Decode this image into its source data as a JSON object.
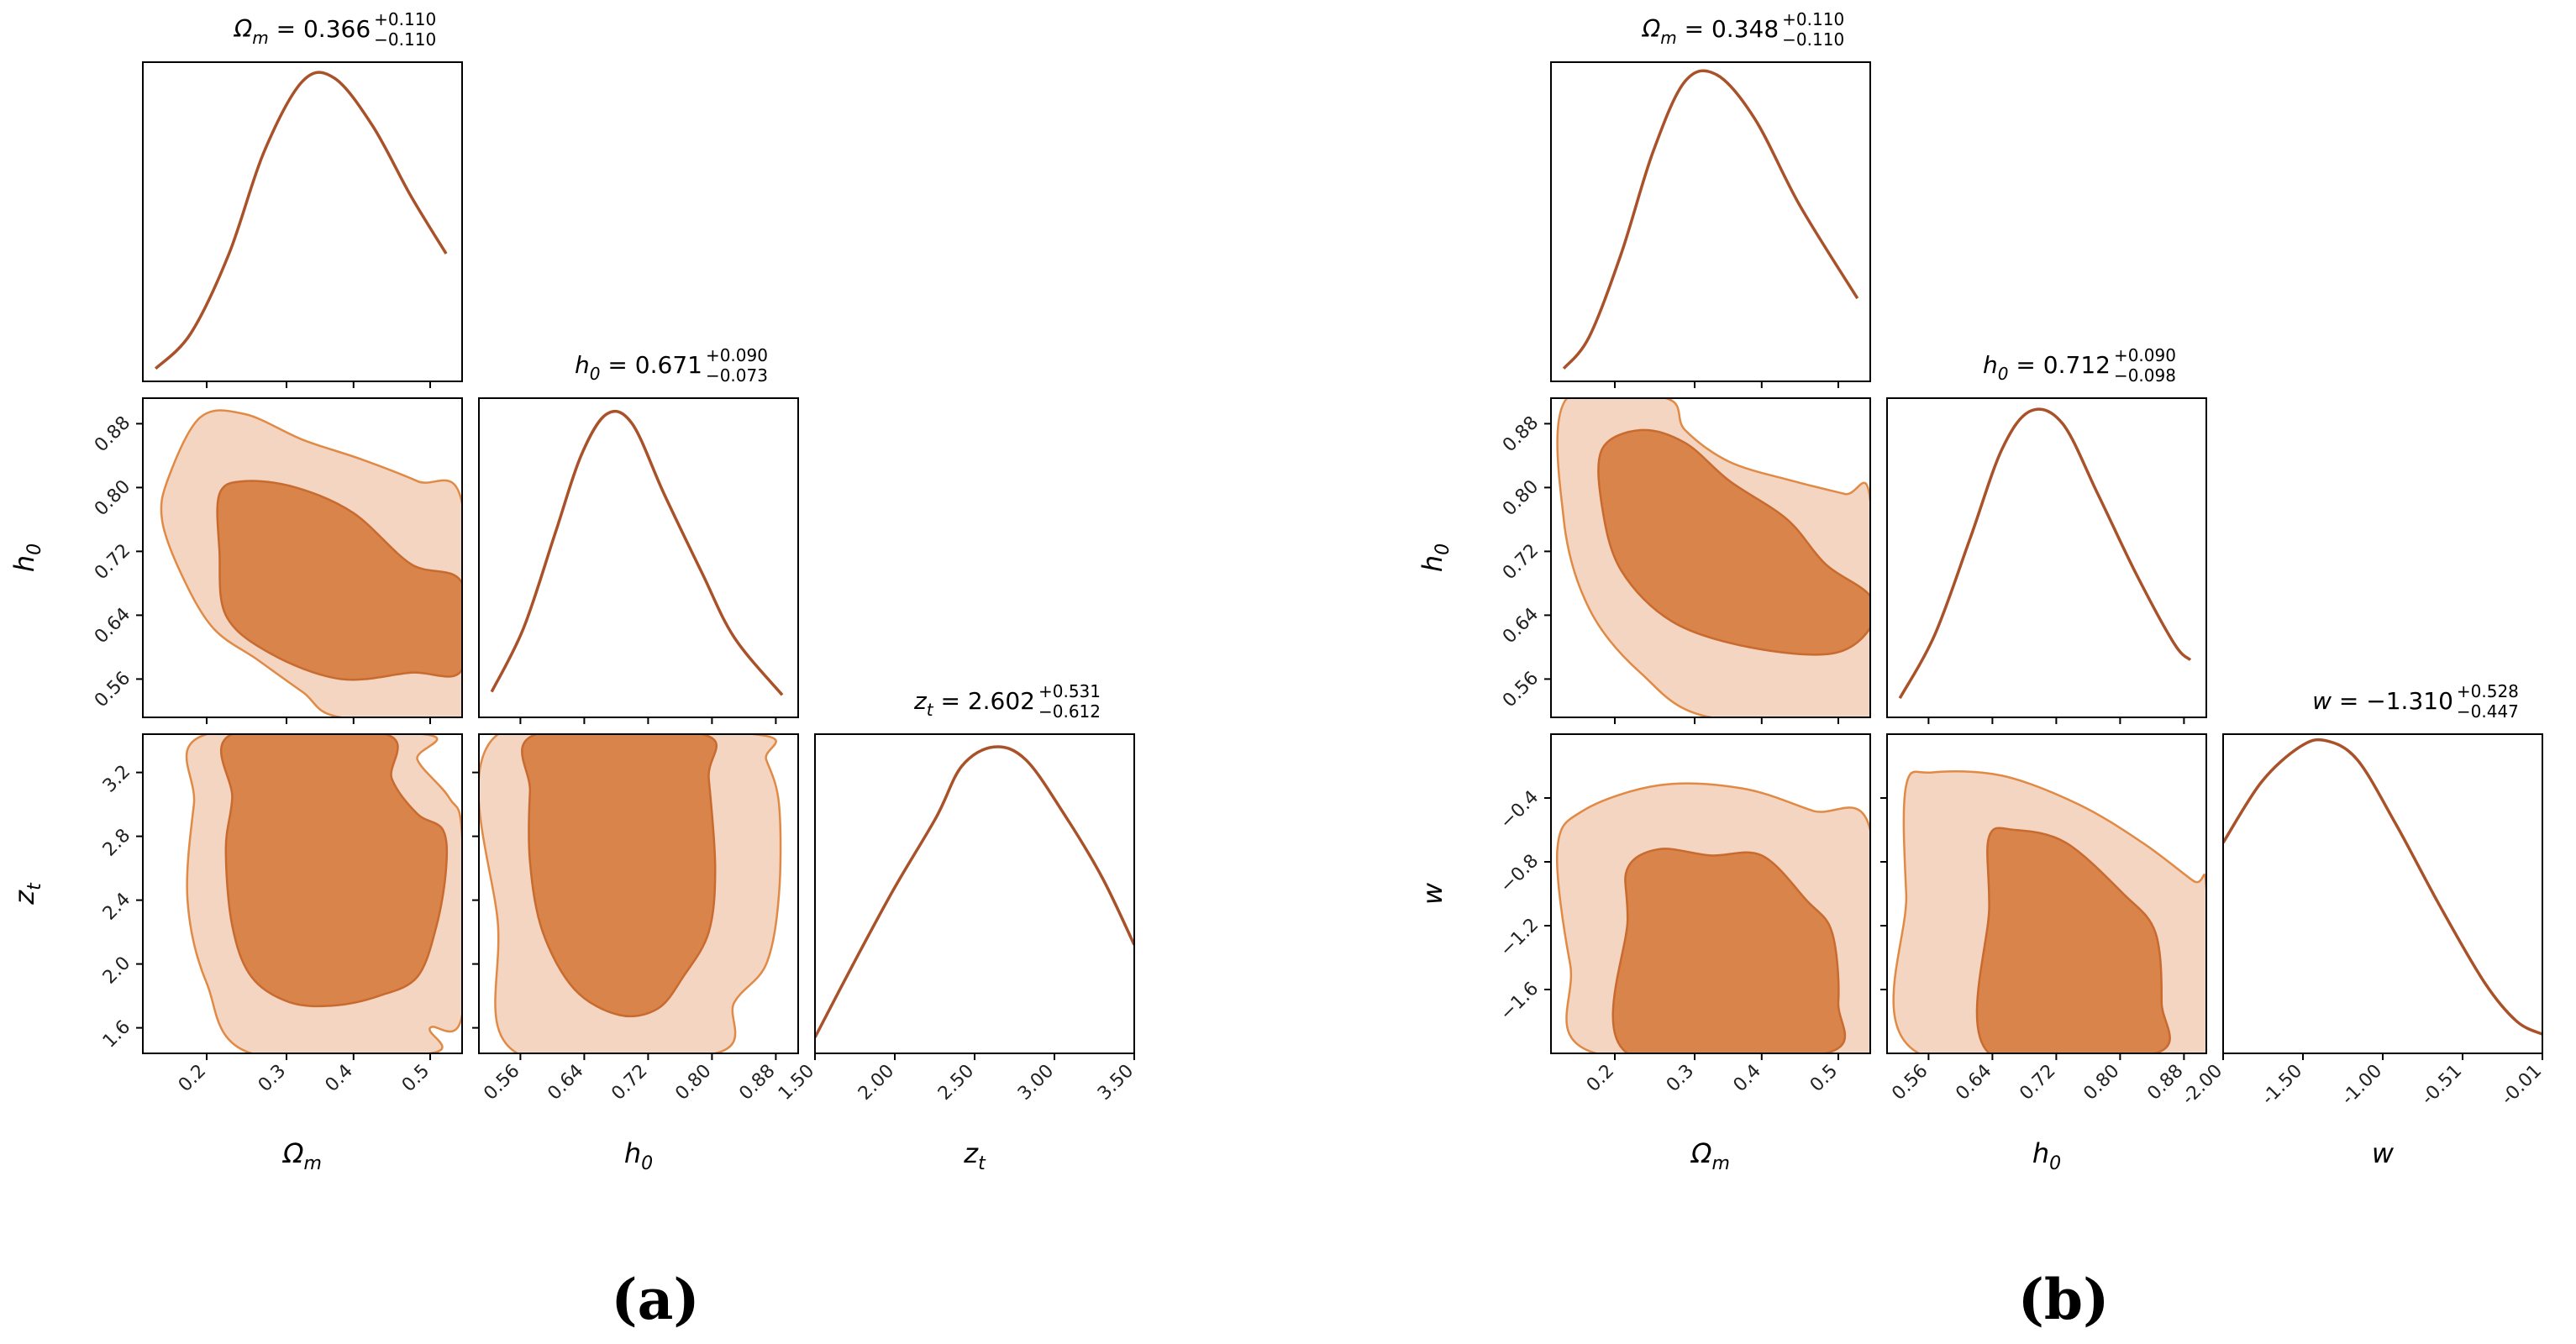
{
  "colors": {
    "line": "#a9522a",
    "contour_outer": "#f3d5c2",
    "contour_inner": "#d9844a"
  },
  "chart_data": [
    {
      "type": "corner",
      "label": "(a)",
      "parameters": [
        {
          "symbol": "Ωm",
          "label": "Ω",
          "sub": "m",
          "ticks": [
            "0.2",
            "0.3",
            "0.4",
            "0.5"
          ],
          "range": [
            0.1,
            0.55
          ]
        },
        {
          "symbol": "h0",
          "label": "h",
          "sub": "0",
          "ticks": [
            "0.56",
            "0.64",
            "0.72",
            "0.80",
            "0.88"
          ],
          "range": [
            0.5,
            0.9
          ]
        },
        {
          "symbol": "zt",
          "label": "z",
          "sub": "t",
          "ticks": [
            "1.50",
            "2.00",
            "2.50",
            "3.00",
            "3.50"
          ],
          "range": [
            1.5,
            3.5
          ],
          "yticks": [
            "1.6",
            "2.0",
            "2.4",
            "2.8",
            "3.2"
          ]
        }
      ],
      "titles": [
        {
          "name": "Ω",
          "sub": "m",
          "text": " = 0.366",
          "plus": "+0.110",
          "minus": "−0.110",
          "mean": 0.366
        },
        {
          "name": "h",
          "sub": "0",
          "text": " = 0.671",
          "plus": "+0.090",
          "minus": "−0.073",
          "mean": 0.671
        },
        {
          "name": "z",
          "sub": "t",
          "text": " = 2.602",
          "plus": "+0.531",
          "minus": "−0.612",
          "mean": 2.602
        }
      ]
    },
    {
      "type": "corner",
      "label": "(b)",
      "parameters": [
        {
          "symbol": "Ωm",
          "label": "Ω",
          "sub": "m",
          "ticks": [
            "0.2",
            "0.3",
            "0.4",
            "0.5"
          ],
          "range": [
            0.1,
            0.55
          ]
        },
        {
          "symbol": "h0",
          "label": "h",
          "sub": "0",
          "ticks": [
            "0.56",
            "0.64",
            "0.72",
            "0.80",
            "0.88"
          ],
          "range": [
            0.5,
            0.9
          ]
        },
        {
          "symbol": "w",
          "label": "w",
          "sub": "",
          "ticks": [
            "-2.00",
            "-1.50",
            "-1.00",
            "-0.51",
            "-0.01"
          ],
          "range": [
            -2.0,
            -0.01
          ],
          "yticks": [
            "−1.6",
            "−1.2",
            "−0.8",
            "−0.4"
          ]
        }
      ],
      "titles": [
        {
          "name": "Ω",
          "sub": "m",
          "text": " = 0.348",
          "plus": "+0.110",
          "minus": "−0.110",
          "mean": 0.348
        },
        {
          "name": "h",
          "sub": "0",
          "text": " = 0.712",
          "plus": "+0.090",
          "minus": "−0.098",
          "mean": 0.712
        },
        {
          "name": "w",
          "sub": "",
          "text": " = −1.310",
          "plus": "+0.528",
          "minus": "−0.447",
          "mean": -1.31
        }
      ]
    }
  ]
}
